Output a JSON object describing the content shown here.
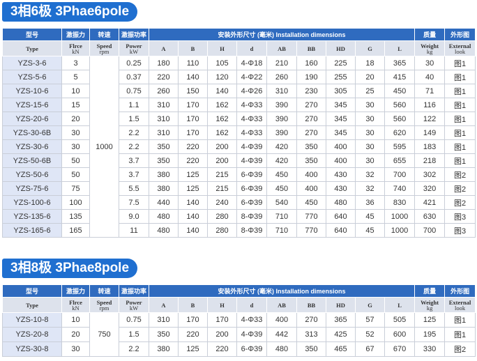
{
  "sections": [
    {
      "title": "3相6极 3Phae6pole",
      "header": [
        "型号",
        "激振力",
        "转速",
        "激振功率",
        "安装外形尺寸 (毫米) Installation dimensions",
        "质量",
        "外形图"
      ],
      "subheader": [
        {
          "label": "Type"
        },
        {
          "label": "Flrce",
          "unit": "kN"
        },
        {
          "label": "Speed",
          "unit": "rpm"
        },
        {
          "label": "Power",
          "unit": "kW"
        },
        {
          "label": "A"
        },
        {
          "label": "B"
        },
        {
          "label": "H"
        },
        {
          "label": "d"
        },
        {
          "label": "AB"
        },
        {
          "label": "BB"
        },
        {
          "label": "HD"
        },
        {
          "label": "G"
        },
        {
          "label": "L"
        },
        {
          "label": "Weight",
          "unit": "kg"
        },
        {
          "label": "External",
          "unit": "look"
        }
      ],
      "speed": "1000",
      "rows": [
        [
          "YZS-3-6",
          "3",
          "0.25",
          "180",
          "110",
          "105",
          "4-Φ18",
          "210",
          "160",
          "225",
          "18",
          "365",
          "30",
          "图1"
        ],
        [
          "YZS-5-6",
          "5",
          "0.37",
          "220",
          "140",
          "120",
          "4-Φ22",
          "260",
          "190",
          "255",
          "20",
          "415",
          "40",
          "图1"
        ],
        [
          "YZS-10-6",
          "10",
          "0.75",
          "260",
          "150",
          "140",
          "4-Φ26",
          "310",
          "230",
          "305",
          "25",
          "450",
          "71",
          "图1"
        ],
        [
          "YZS-15-6",
          "15",
          "1.1",
          "310",
          "170",
          "162",
          "4-Φ33",
          "390",
          "270",
          "345",
          "30",
          "560",
          "116",
          "图1"
        ],
        [
          "YZS-20-6",
          "20",
          "1.5",
          "310",
          "170",
          "162",
          "4-Φ33",
          "390",
          "270",
          "345",
          "30",
          "560",
          "122",
          "图1"
        ],
        [
          "YZS-30-6B",
          "30",
          "2.2",
          "310",
          "170",
          "162",
          "4-Φ33",
          "390",
          "270",
          "345",
          "30",
          "620",
          "149",
          "图1"
        ],
        [
          "YZS-30-6",
          "30",
          "2.2",
          "350",
          "220",
          "200",
          "4-Φ39",
          "420",
          "350",
          "400",
          "30",
          "595",
          "183",
          "图1"
        ],
        [
          "YZS-50-6B",
          "50",
          "3.7",
          "350",
          "220",
          "200",
          "4-Φ39",
          "420",
          "350",
          "400",
          "30",
          "655",
          "218",
          "图1"
        ],
        [
          "YZS-50-6",
          "50",
          "3.7",
          "380",
          "125",
          "215",
          "6-Φ39",
          "450",
          "400",
          "430",
          "32",
          "700",
          "302",
          "图2"
        ],
        [
          "YZS-75-6",
          "75",
          "5.5",
          "380",
          "125",
          "215",
          "6-Φ39",
          "450",
          "400",
          "430",
          "32",
          "740",
          "320",
          "图2"
        ],
        [
          "YZS-100-6",
          "100",
          "7.5",
          "440",
          "140",
          "240",
          "6-Φ39",
          "540",
          "450",
          "480",
          "36",
          "830",
          "421",
          "图2"
        ],
        [
          "YZS-135-6",
          "135",
          "9.0",
          "480",
          "140",
          "280",
          "8-Φ39",
          "710",
          "770",
          "640",
          "45",
          "1000",
          "630",
          "图3"
        ],
        [
          "YZS-165-6",
          "165",
          "11",
          "480",
          "140",
          "280",
          "8-Φ39",
          "710",
          "770",
          "640",
          "45",
          "1000",
          "700",
          "图3"
        ]
      ]
    },
    {
      "title": "3相8极 3Phae8pole",
      "header": [
        "型号",
        "激振力",
        "转速",
        "激振功率",
        "安装外形尺寸 (毫米) Installation dimensions",
        "质量",
        "外形图"
      ],
      "subheader": [
        {
          "label": "Type"
        },
        {
          "label": "Flrce",
          "unit": "kN"
        },
        {
          "label": "Speed",
          "unit": "rpm"
        },
        {
          "label": "Power",
          "unit": "kW"
        },
        {
          "label": "A"
        },
        {
          "label": "B"
        },
        {
          "label": "H"
        },
        {
          "label": "d"
        },
        {
          "label": "AB"
        },
        {
          "label": "BB"
        },
        {
          "label": "HD"
        },
        {
          "label": "G"
        },
        {
          "label": "L"
        },
        {
          "label": "Weight",
          "unit": "kg"
        },
        {
          "label": "External",
          "unit": "look"
        }
      ],
      "speed": "750",
      "rows": [
        [
          "YZS-10-8",
          "10",
          "0.75",
          "310",
          "170",
          "170",
          "4-Φ33",
          "400",
          "270",
          "365",
          "57",
          "505",
          "125",
          "图1"
        ],
        [
          "YZS-20-8",
          "20",
          "1.5",
          "350",
          "220",
          "200",
          "4-Φ39",
          "442",
          "313",
          "425",
          "52",
          "600",
          "195",
          "图1"
        ],
        [
          "YZS-30-8",
          "30",
          "2.2",
          "380",
          "125",
          "220",
          "6-Φ39",
          "480",
          "350",
          "465",
          "67",
          "670",
          "330",
          "图2"
        ]
      ]
    }
  ]
}
